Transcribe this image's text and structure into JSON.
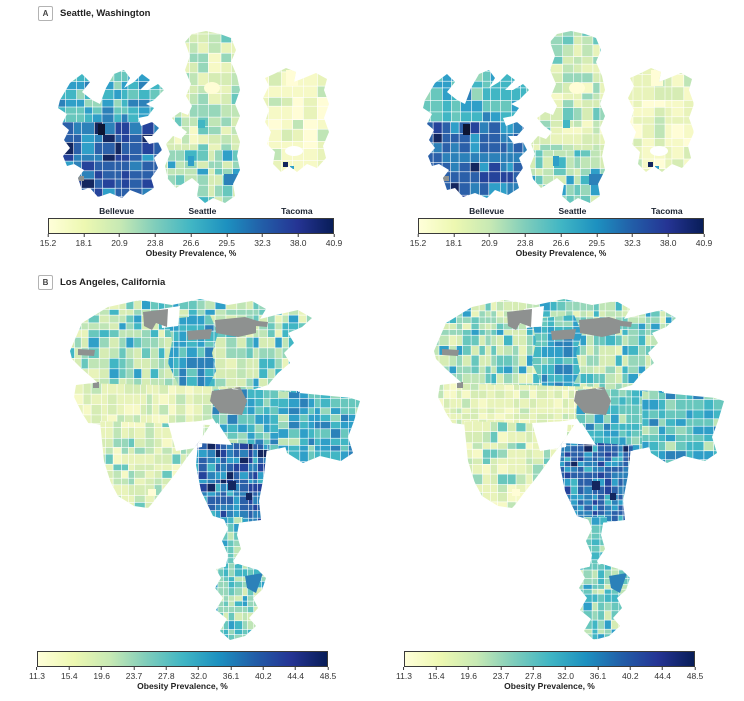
{
  "panels": [
    {
      "tag": "A",
      "title": "Seattle, Washington",
      "colorbar": {
        "city_labels": [
          "Bellevue",
          "Seattle",
          "Tacoma"
        ],
        "ticks": [
          "15.2",
          "18.1",
          "20.9",
          "23.8",
          "26.6",
          "29.5",
          "32.3",
          "38.0",
          "40.9"
        ],
        "caption": "Obesity Prevalence, %"
      }
    },
    {
      "tag": "B",
      "title": "Los Angeles, California",
      "colorbar": {
        "ticks": [
          "11.3",
          "15.4",
          "19.6",
          "23.7",
          "27.8",
          "32.0",
          "36.1",
          "40.2",
          "44.4",
          "48.5"
        ],
        "caption": "Obesity Prevalence, %"
      }
    }
  ],
  "colors": {
    "colormap_stops": [
      "#ffffd9",
      "#edf8b1",
      "#c7e9b4",
      "#7fcdbb",
      "#41b6c4",
      "#1d91c0",
      "#225ea8",
      "#253494",
      "#081d58"
    ],
    "palette": {
      "c1": "#fffdd6",
      "c2": "#f6f9c6",
      "c3": "#e8f3ba",
      "c4": "#d6ecb4",
      "c5": "#bfe5b6",
      "c6": "#97d7ba",
      "c7": "#68c7bd",
      "c8": "#41b6c4",
      "c9": "#2f9fc8",
      "c10": "#2c81b9",
      "c11": "#2b60a9",
      "c12": "#25439b",
      "c13": "#13265f",
      "d1": "#0d1533",
      "nodata": "#8e9190",
      "white": "#ffffff"
    }
  }
}
